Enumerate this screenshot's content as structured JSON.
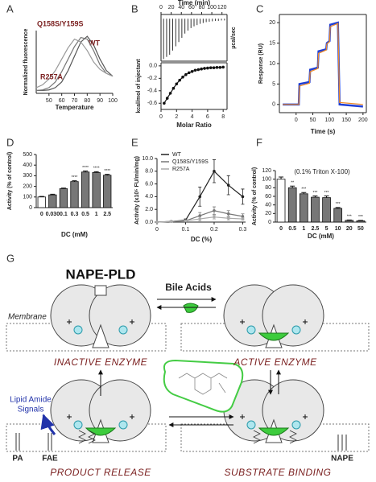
{
  "chart_data": [
    {
      "type": "line",
      "label": "A",
      "xlabel": "Temperature",
      "ylabel": "Normalized fluorescence",
      "xlim": [
        40,
        100
      ],
      "xticks": [
        50,
        60,
        70,
        80,
        90,
        100
      ],
      "ylim": [
        0,
        1.1
      ],
      "x": [
        40,
        45,
        50,
        55,
        60,
        65,
        70,
        75,
        80,
        85,
        90,
        95,
        100
      ],
      "series": [
        {
          "name": "WT",
          "color": "#555555",
          "values": [
            0.05,
            0.05,
            0.06,
            0.1,
            0.2,
            0.4,
            0.65,
            0.9,
            1.0,
            0.85,
            0.6,
            0.4,
            0.3
          ]
        },
        {
          "name": "Q158S/Y159S",
          "color": "#777777",
          "values": [
            0.05,
            0.06,
            0.1,
            0.2,
            0.38,
            0.6,
            0.82,
            0.98,
            0.95,
            0.75,
            0.5,
            0.35,
            0.3
          ]
        },
        {
          "name": "R257A",
          "color": "#999999",
          "values": [
            0.1,
            0.15,
            0.25,
            0.4,
            0.6,
            0.8,
            0.95,
            0.9,
            0.75,
            0.55,
            0.42,
            0.35,
            0.3
          ]
        }
      ]
    },
    {
      "type": "spike",
      "label": "B",
      "xlabel": "Time (min)",
      "ylabel": "µcal/sec",
      "xlim": [
        0,
        130
      ],
      "xticks": [
        0,
        20,
        40,
        60,
        80,
        100,
        120
      ],
      "ylim": [
        -1,
        0.1
      ],
      "color": "#333333",
      "x": [
        5,
        11,
        17,
        23,
        29,
        35,
        41,
        47,
        53,
        59,
        65,
        71,
        77,
        83,
        89,
        95,
        101,
        107,
        113,
        119,
        125
      ],
      "values": [
        -0.95,
        -0.9,
        -0.85,
        -0.75,
        -0.65,
        -0.55,
        -0.45,
        -0.35,
        -0.28,
        -0.22,
        -0.18,
        -0.15,
        -0.12,
        -0.1,
        -0.08,
        -0.07,
        -0.06,
        -0.05,
        -0.05,
        -0.04,
        -0.04
      ]
    },
    {
      "type": "line",
      "xlabel": "Molar Ratio",
      "ylabel": "kcal/mol of injectant",
      "markers": true,
      "color": "#111111",
      "xlim": [
        0,
        8.5
      ],
      "xticks": [
        0,
        2,
        4,
        6,
        8
      ],
      "ylim": [
        -0.7,
        0.05
      ],
      "yticks": [
        {
          "value": 0,
          "label": "0.0"
        },
        {
          "value": -0.2,
          "label": "-0.2"
        },
        {
          "value": -0.4,
          "label": "-0.4"
        },
        {
          "value": -0.6,
          "label": "-0.6"
        }
      ],
      "x": [
        0.4,
        0.8,
        1.2,
        1.6,
        2.0,
        2.4,
        2.8,
        3.2,
        3.6,
        4.0,
        4.4,
        4.8,
        5.2,
        5.6,
        6.0,
        6.4,
        6.8,
        7.2,
        7.6,
        8.0
      ],
      "values": [
        -0.6,
        -0.52,
        -0.44,
        -0.36,
        -0.29,
        -0.23,
        -0.18,
        -0.14,
        -0.11,
        -0.09,
        -0.07,
        -0.06,
        -0.05,
        -0.04,
        -0.035,
        -0.03,
        -0.03,
        -0.025,
        -0.025,
        -0.02
      ]
    },
    {
      "type": "line",
      "label": "C",
      "xlabel": "Time (s)",
      "ylabel": "Response (RU)",
      "xlim": [
        -50,
        210
      ],
      "xticks": [
        0,
        50,
        100,
        150,
        200
      ],
      "ylim": [
        -2,
        22
      ],
      "yticks": [
        0,
        5,
        10,
        15,
        20
      ],
      "x": [
        -40,
        8,
        10,
        40,
        42,
        65,
        67,
        90,
        92,
        100,
        102,
        125,
        130,
        200
      ],
      "series": [
        {
          "color": "#1f3fd6",
          "values": [
            0,
            0,
            5,
            5.5,
            8.5,
            9,
            13,
            13.5,
            15,
            15.5,
            19.5,
            20,
            0,
            -0.5
          ]
        },
        {
          "color": "#f08a24",
          "values": [
            0,
            0,
            4.5,
            5.2,
            8,
            8.8,
            12.5,
            13.3,
            14.8,
            15.4,
            19,
            19.8,
            0.5,
            0
          ]
        }
      ]
    },
    {
      "type": "bar",
      "label": "D",
      "xlabel": "DC (mM)",
      "ylabel": "Activity (% of control)",
      "categories": [
        "0",
        "0.030",
        "0.1",
        "0.3",
        "0.5",
        "1",
        "2.5"
      ],
      "values": [
        100,
        120,
        178,
        245,
        335,
        330,
        305
      ],
      "errors": [
        5,
        6,
        6,
        8,
        10,
        8,
        8
      ],
      "colors": [
        "#ffffff",
        "#777777",
        "#777777",
        "#777777",
        "#777777",
        "#777777",
        "#777777"
      ],
      "significance": [
        null,
        null,
        null,
        "****",
        "****",
        "****",
        "****"
      ],
      "ylim": [
        0,
        500
      ],
      "yticks": [
        0,
        100,
        200,
        300,
        400,
        500
      ]
    },
    {
      "type": "line",
      "label": "E",
      "xlabel": "DC (%)",
      "ylabel": "Activity (x10⁵ FU/min/mg)",
      "markers": true,
      "xlim": [
        0,
        0.31
      ],
      "xticks": [
        0,
        0.1,
        0.2,
        0.3
      ],
      "ylim": [
        0,
        10
      ],
      "yticks": [
        {
          "value": 0,
          "label": "0.0"
        },
        {
          "value": 2,
          "label": "2.0"
        },
        {
          "value": 4,
          "label": "4.0"
        },
        {
          "value": 6,
          "label": "6.0"
        },
        {
          "value": 8,
          "label": "8.0"
        },
        {
          "value": 10,
          "label": "10.0"
        }
      ],
      "x": [
        0,
        0.05,
        0.1,
        0.15,
        0.2,
        0.25,
        0.3
      ],
      "series": [
        {
          "name": "WT",
          "color": "#222222",
          "values": [
            0,
            0.1,
            0.3,
            4.0,
            8.0,
            5.8,
            4.0
          ],
          "errors": [
            0,
            0.1,
            0.2,
            1.5,
            1.8,
            1.5,
            1.2
          ]
        },
        {
          "name": "Q158S/Y159S",
          "color": "#777777",
          "values": [
            0,
            0.1,
            0.2,
            1.0,
            1.8,
            1.3,
            0.9
          ],
          "errors": [
            0,
            0.1,
            0.1,
            0.5,
            0.6,
            0.5,
            0.4
          ]
        },
        {
          "name": "R257A",
          "color": "#aaaaaa",
          "values": [
            0,
            0.1,
            0.2,
            0.5,
            0.8,
            0.6,
            0.5
          ],
          "errors": [
            0,
            0.1,
            0.1,
            0.3,
            0.3,
            0.3,
            0.2
          ]
        }
      ]
    },
    {
      "type": "bar",
      "label": "F",
      "xlabel": "DC (mM)",
      "ylabel": "Activity (% of control)",
      "note": "(0.1% Triton X-100)",
      "categories": [
        "0",
        "0.5",
        "1",
        "2.5",
        "5",
        "10",
        "20",
        "50"
      ],
      "values": [
        100,
        80,
        66,
        58,
        57,
        32,
        4,
        3
      ],
      "errors": [
        5,
        4,
        3,
        3,
        4,
        2,
        1,
        1
      ],
      "colors": [
        "#ffffff",
        "#777777",
        "#777777",
        "#777777",
        "#777777",
        "#777777",
        "#777777",
        "#777777"
      ],
      "significance": [
        null,
        "**",
        "***",
        "***",
        "***",
        "***",
        "***",
        "***"
      ],
      "ylim": [
        0,
        120
      ],
      "yticks": [
        0,
        20,
        40,
        60,
        80,
        100,
        120
      ]
    }
  ],
  "diagram": {
    "label": "G",
    "enzyme": "NAPE-PLD",
    "ligand": "Bile Acids",
    "membrane": "Membrane",
    "inactive": "INACTIVE ENZYME",
    "active": "ACTIVE ENZYME",
    "signals": [
      "Lipid Amide",
      "Signals"
    ],
    "pa": "PA",
    "fae": "FAE",
    "release": "PRODUCT RELEASE",
    "binding": "SUBSTRATE BINDING",
    "nape": "NAPE"
  }
}
